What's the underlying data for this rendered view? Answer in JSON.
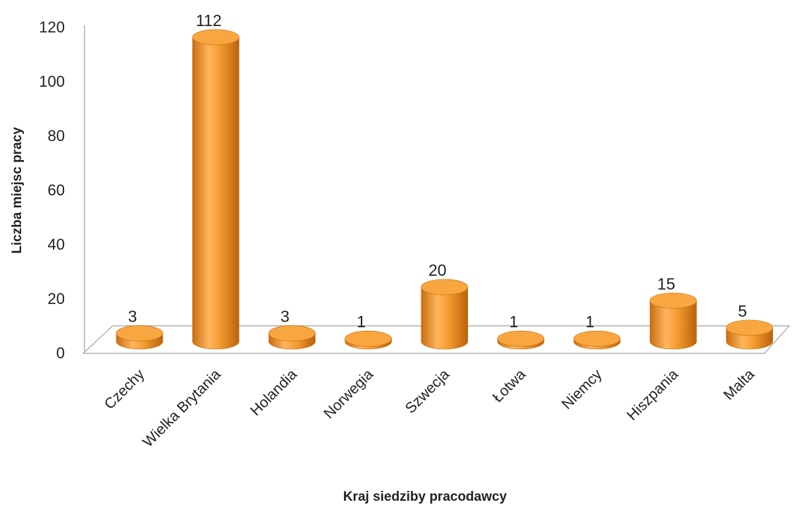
{
  "chart_data": {
    "type": "bar",
    "title": "",
    "xlabel": "Kraj siedziby pracodawcy",
    "ylabel": "Liczba miejsc pracy",
    "categories": [
      "Czechy",
      "Wielka Brytania",
      "Holandia",
      "Norwegia",
      "Szwecja",
      "Łotwa",
      "Niemcy",
      "Hiszpania",
      "Malta"
    ],
    "values": [
      3,
      112,
      3,
      1,
      20,
      1,
      1,
      15,
      5
    ],
    "data_labels": [
      "3",
      "112",
      "3",
      "1",
      "20",
      "1",
      "1",
      "15",
      "5"
    ],
    "ylim": [
      0,
      120
    ],
    "yticks": [
      "0",
      "20",
      "40",
      "60",
      "80",
      "100",
      "120"
    ],
    "grid": false,
    "legend": "none",
    "style": "3d-cylinder",
    "colors": {
      "bar": "#f29a2e",
      "bar_dark": "#c96e10",
      "bar_light": "#ffc98a",
      "top": "#f7a640",
      "axis": "#b0b0b0"
    }
  }
}
